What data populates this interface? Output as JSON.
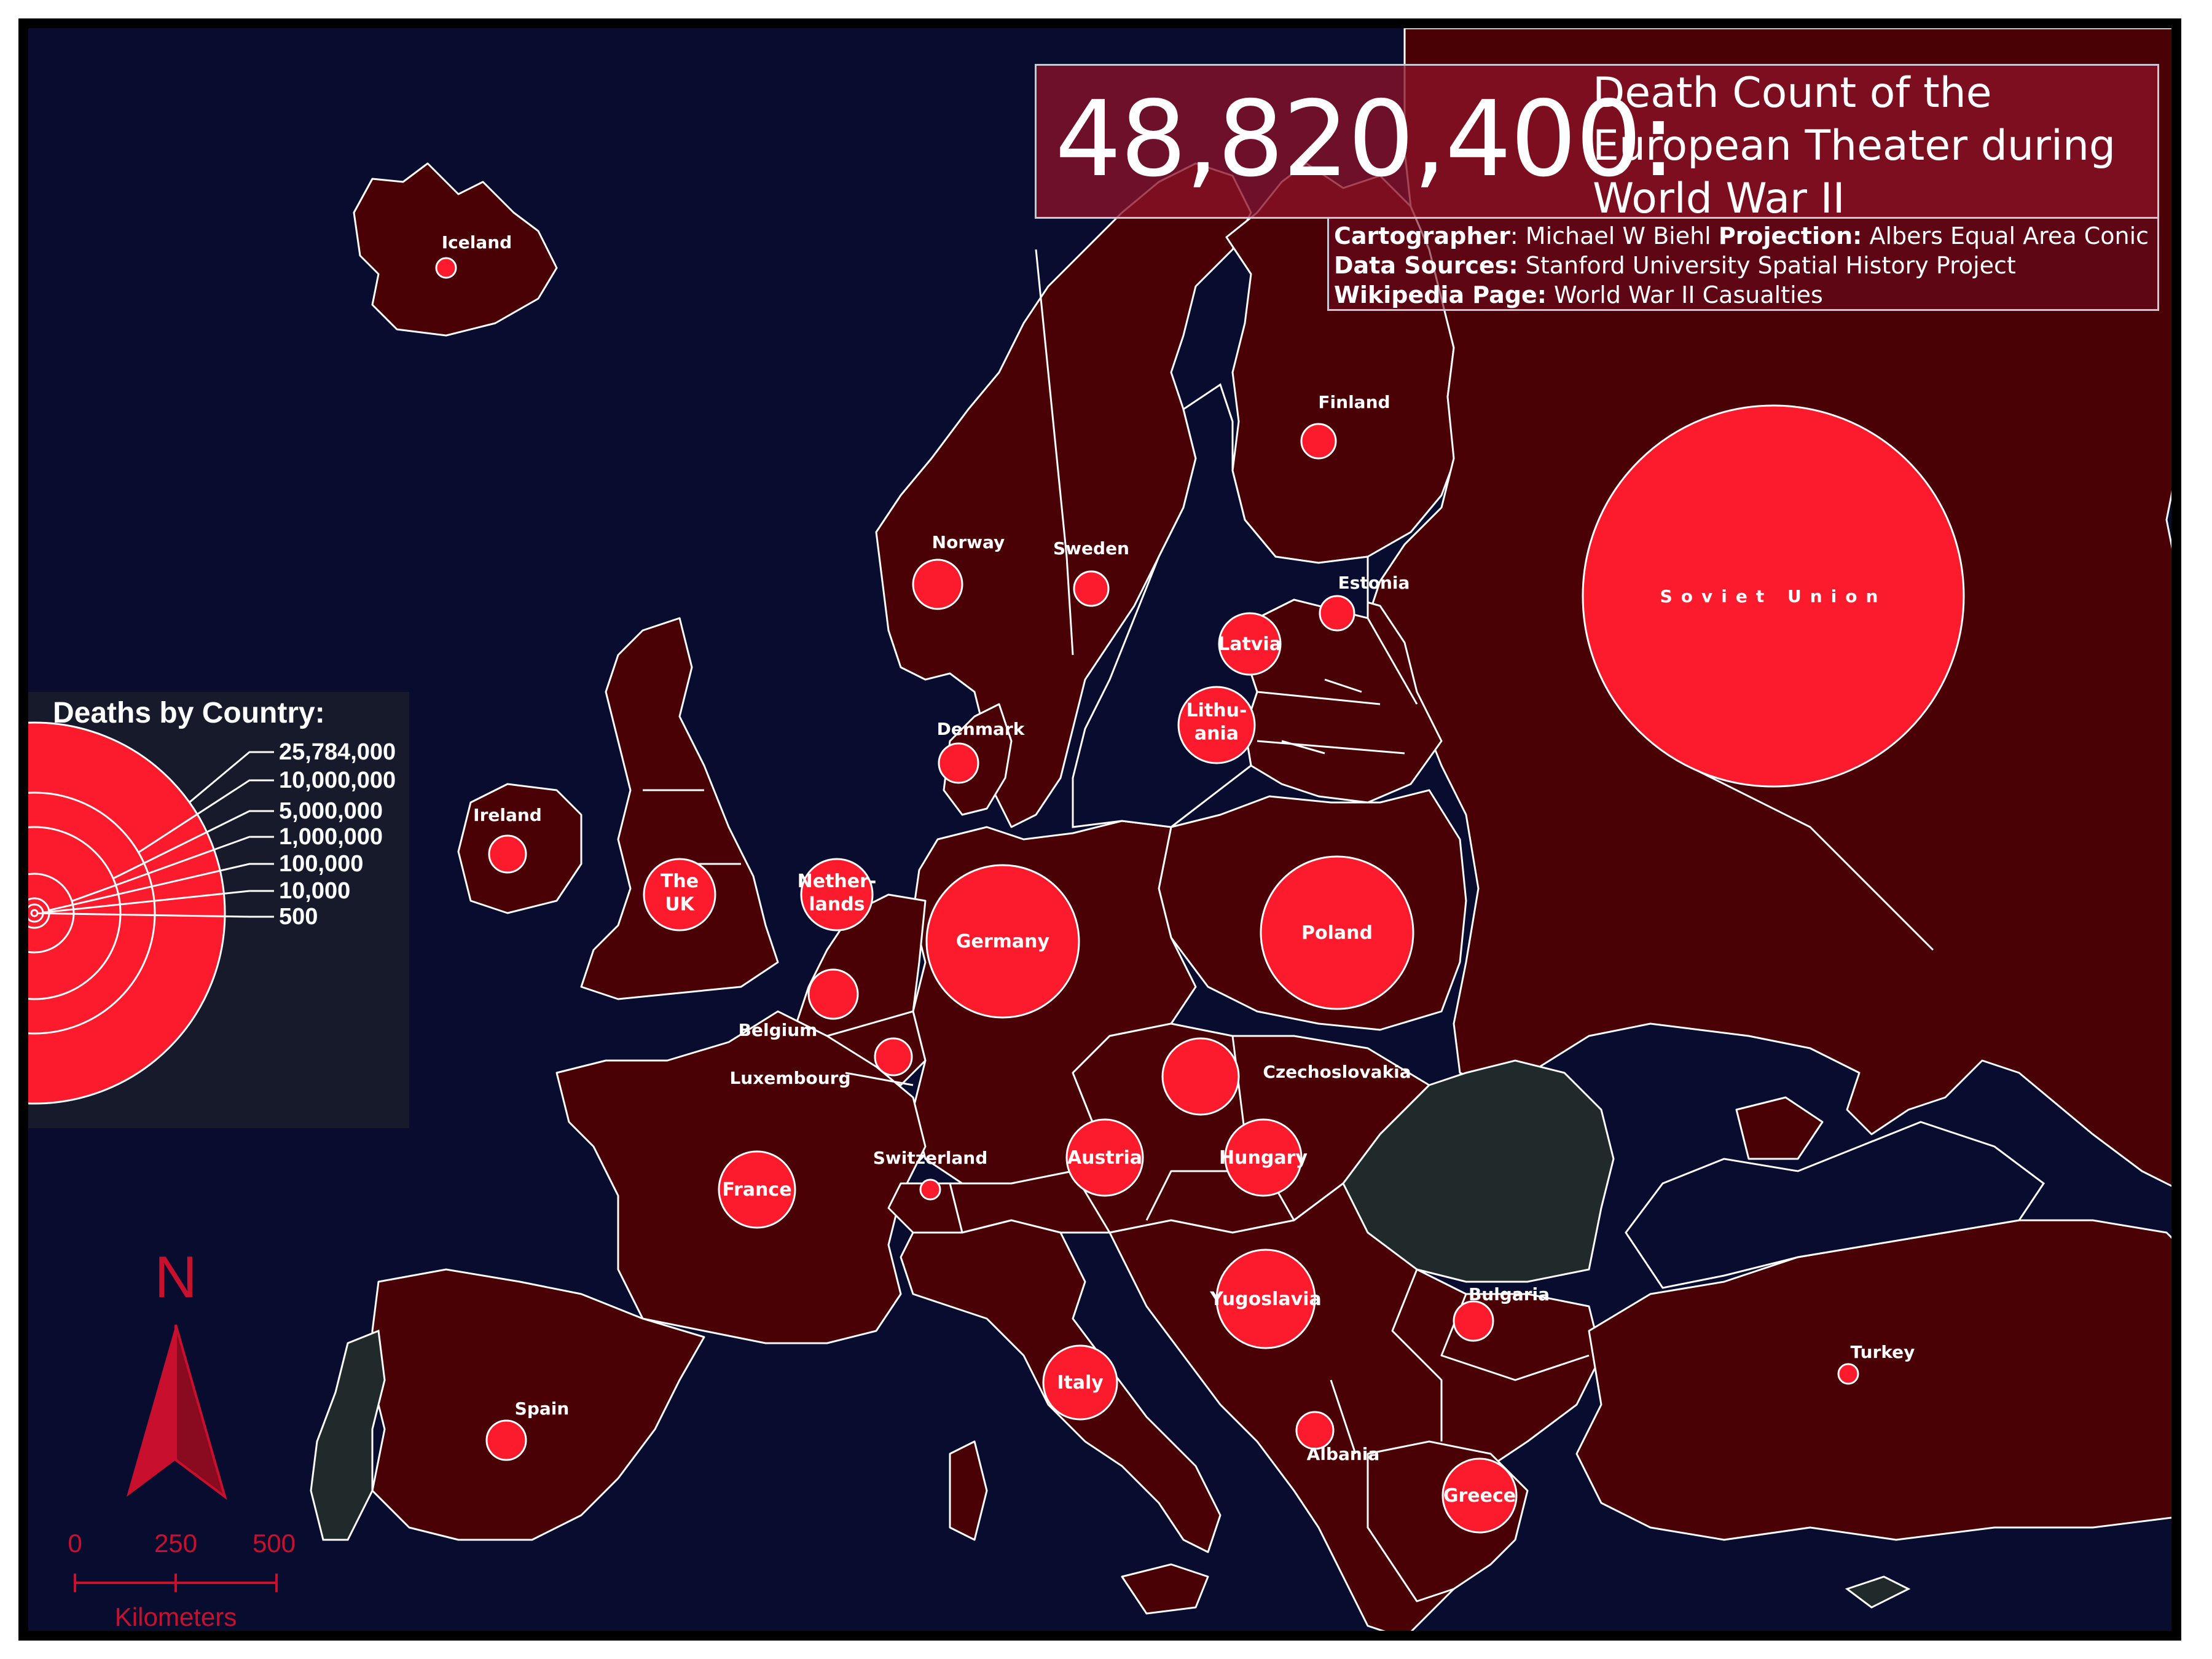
{
  "header": {
    "count": "48,820,400:",
    "title_lines": [
      "Death Count of the",
      "European Theater during",
      "World War II"
    ]
  },
  "credits": {
    "cartographer_label": "Cartographer",
    "cartographer": "Michael W Biehl",
    "projection_label": "Projection:",
    "projection": "Albers Equal Area Conic",
    "sources_label": "Data Sources:",
    "sources": "Stanford University Spatial History Project",
    "wiki_label": "Wikipedia Page:",
    "wiki": "World War II Casualties"
  },
  "legend": {
    "title": "Deaths by Country:",
    "values": [
      "25,784,000",
      "10,000,000",
      "5,000,000",
      "1,000,000",
      "100,000",
      "10,000",
      "500"
    ]
  },
  "north_arrow": {
    "letter": "N"
  },
  "scale": {
    "ticks": [
      "0",
      "250",
      "500"
    ],
    "unit": "Kilometers"
  },
  "countries": [
    {
      "name": "Iceland"
    },
    {
      "name": "Finland"
    },
    {
      "name": "Norway"
    },
    {
      "name": "Sweden"
    },
    {
      "name": "Estonia"
    },
    {
      "name": "Latvia"
    },
    {
      "name": "Lithu-",
      "name2": "ania"
    },
    {
      "name": "Denmark"
    },
    {
      "name": "Ireland"
    },
    {
      "name": "The",
      "name2": "UK"
    },
    {
      "name": "Nether-",
      "name2": "lands"
    },
    {
      "name": "Germany"
    },
    {
      "name": "Poland"
    },
    {
      "name": "Soviet Union"
    },
    {
      "name": "Belgium"
    },
    {
      "name": "Luxembourg"
    },
    {
      "name": "Czechoslovakia"
    },
    {
      "name": "France"
    },
    {
      "name": "Switzerland"
    },
    {
      "name": "Austria"
    },
    {
      "name": "Hungary"
    },
    {
      "name": "Yugoslavia"
    },
    {
      "name": "Bulgaria"
    },
    {
      "name": "Turkey"
    },
    {
      "name": "Italy"
    },
    {
      "name": "Spain"
    },
    {
      "name": "Albania"
    },
    {
      "name": "Greece"
    }
  ],
  "colors": {
    "sea": "#080c2e",
    "land": "#4a0106",
    "neutral": "#212a2a",
    "circle": "#fc1b2d",
    "accent": "#c8102e"
  }
}
